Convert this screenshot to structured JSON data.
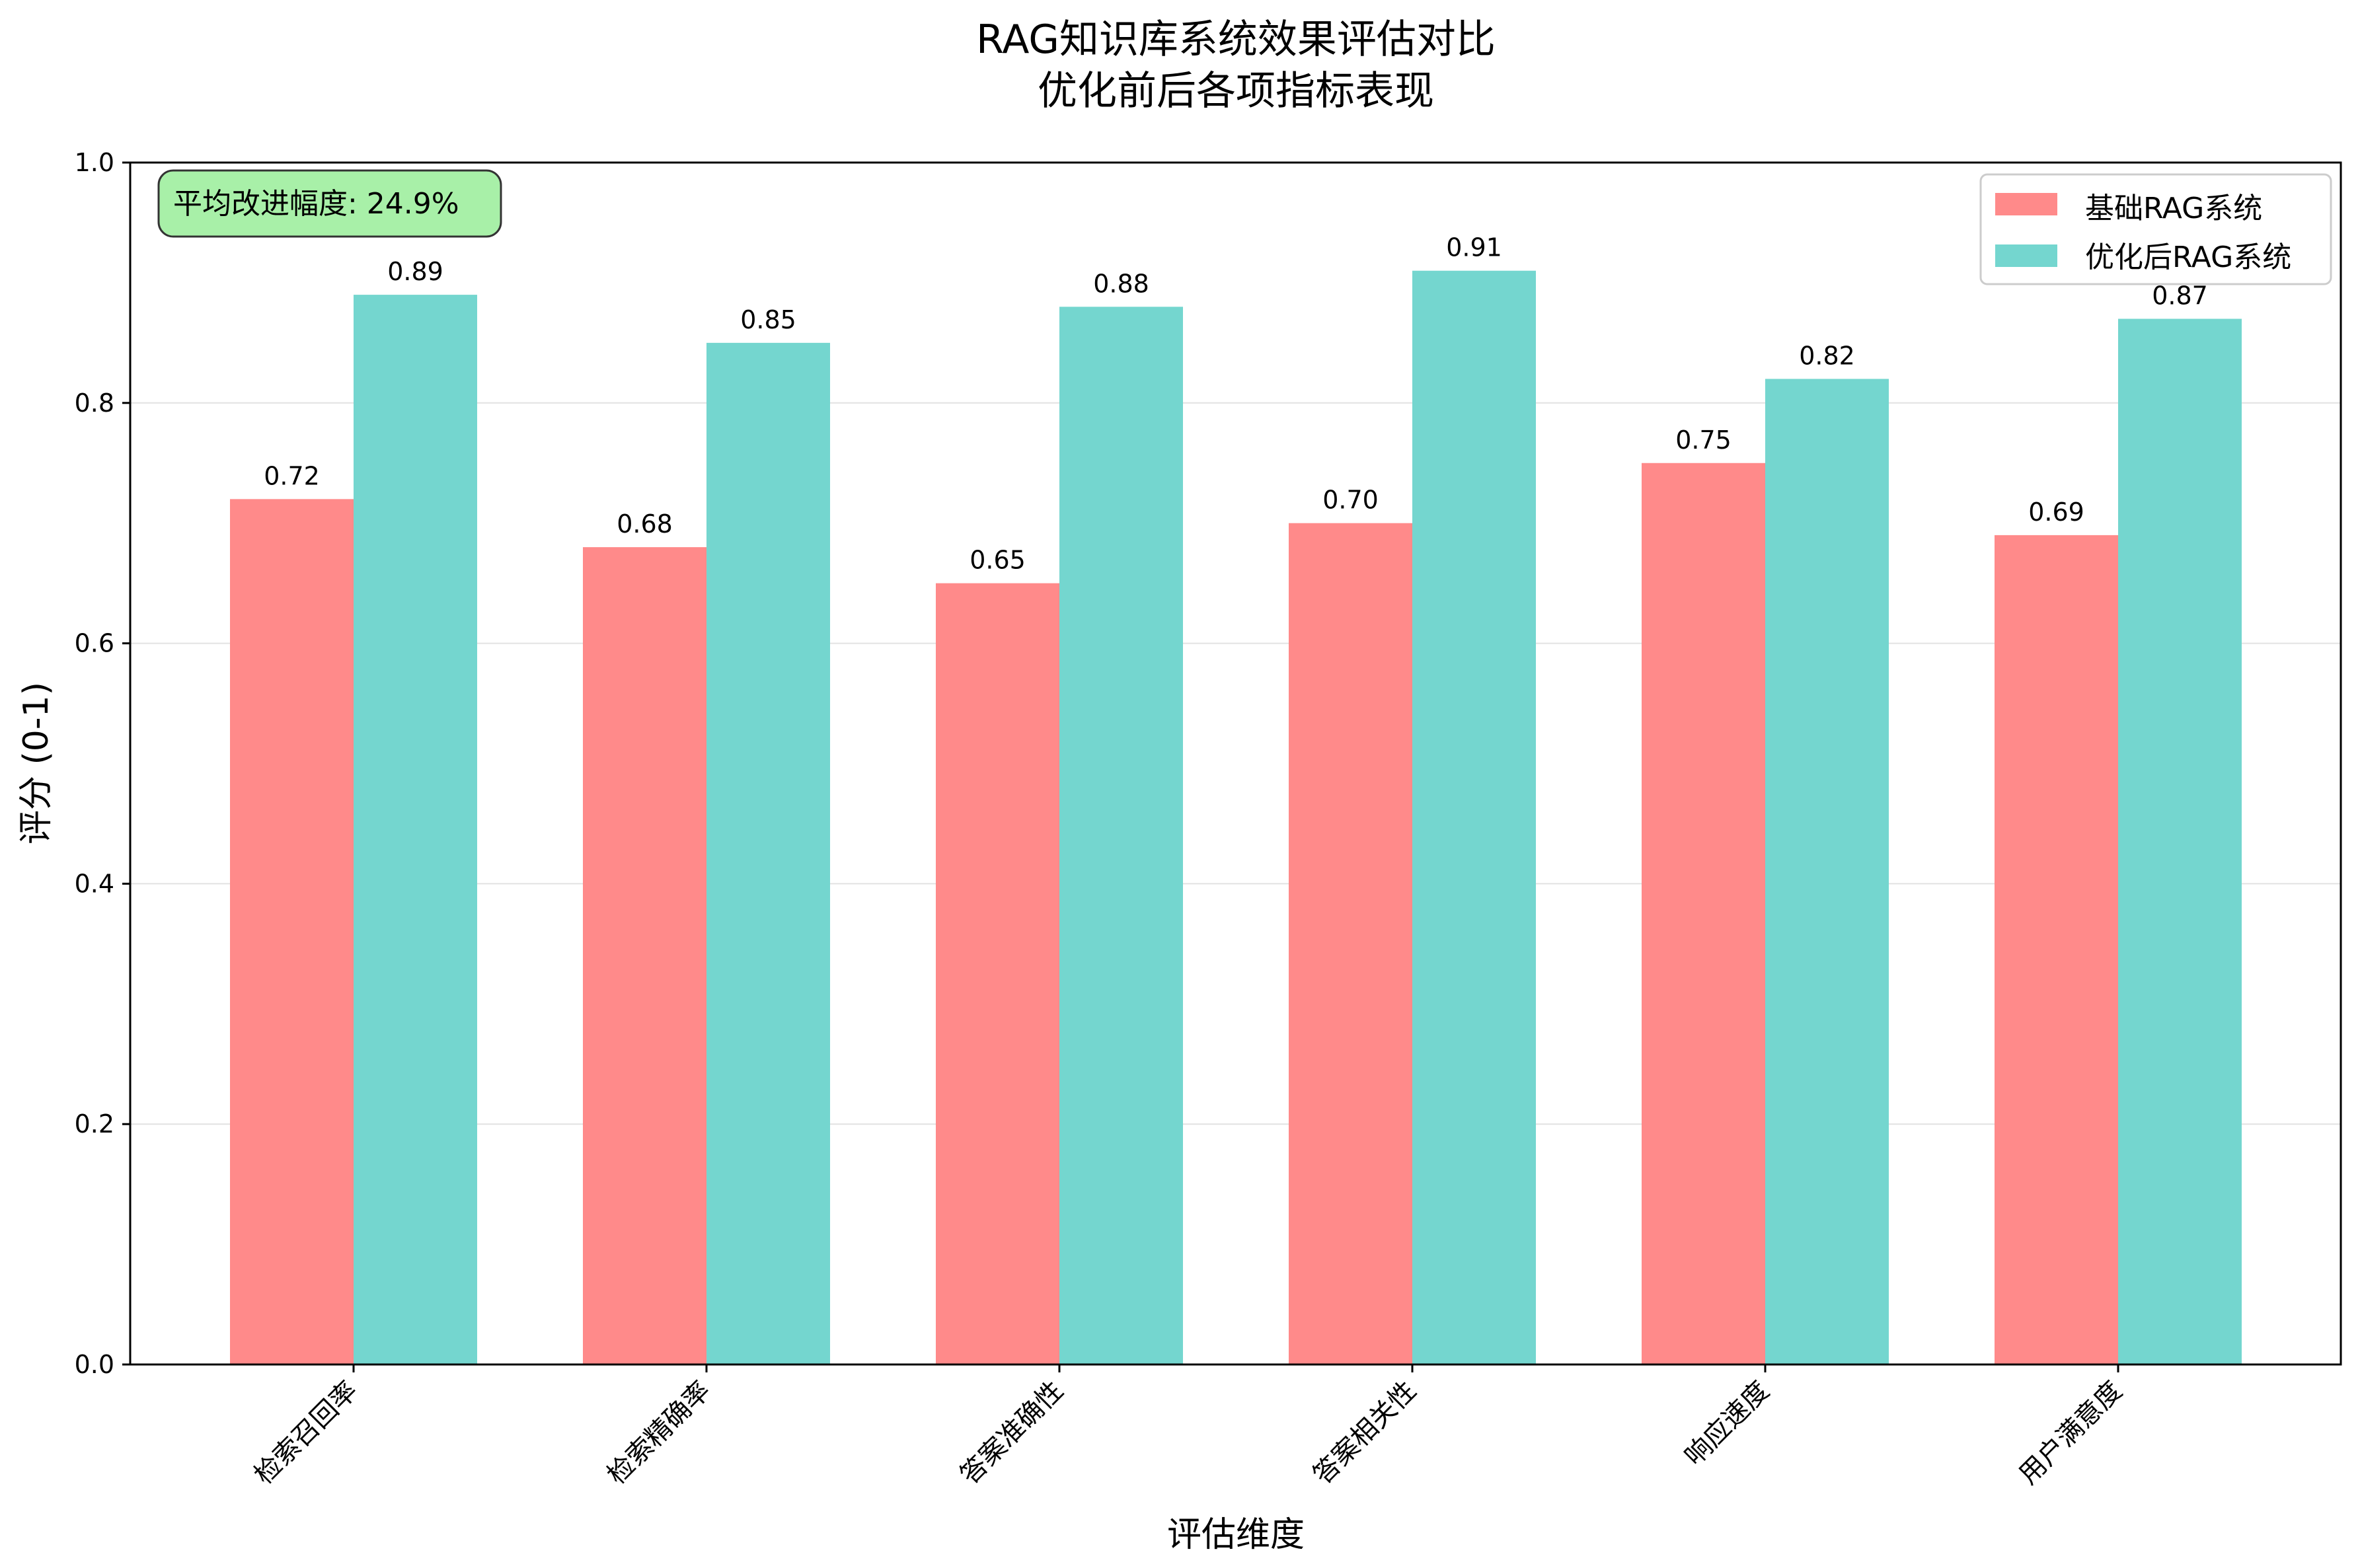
{
  "chart_data": {
    "type": "bar",
    "title": "RAG知识库系统效果评估对比",
    "subtitle": "优化前后各项指标表现",
    "xlabel": "评估维度",
    "ylabel": "评分 (0-1)",
    "ylim": [
      0,
      1.0
    ],
    "yticks": [
      "0.0",
      "0.2",
      "0.4",
      "0.6",
      "0.8",
      "1.0"
    ],
    "categories": [
      "检索召回率",
      "检索精确率",
      "答案准确性",
      "答案相关性",
      "响应速度",
      "用户满意度"
    ],
    "series": [
      {
        "name": "基础RAG系统",
        "color": "#ff8a8a",
        "values": [
          0.72,
          0.68,
          0.65,
          0.7,
          0.75,
          0.69
        ],
        "labels": [
          "0.72",
          "0.68",
          "0.65",
          "0.70",
          "0.75",
          "0.69"
        ]
      },
      {
        "name": "优化后RAG系统",
        "color": "#74d6cf",
        "values": [
          0.89,
          0.85,
          0.88,
          0.91,
          0.82,
          0.87
        ],
        "labels": [
          "0.89",
          "0.85",
          "0.88",
          "0.91",
          "0.82",
          "0.87"
        ]
      }
    ],
    "grid": "y",
    "legend": "top-right",
    "annotation": {
      "text": "平均改进幅度: 24.9%",
      "color": "#a8f0a8"
    }
  }
}
